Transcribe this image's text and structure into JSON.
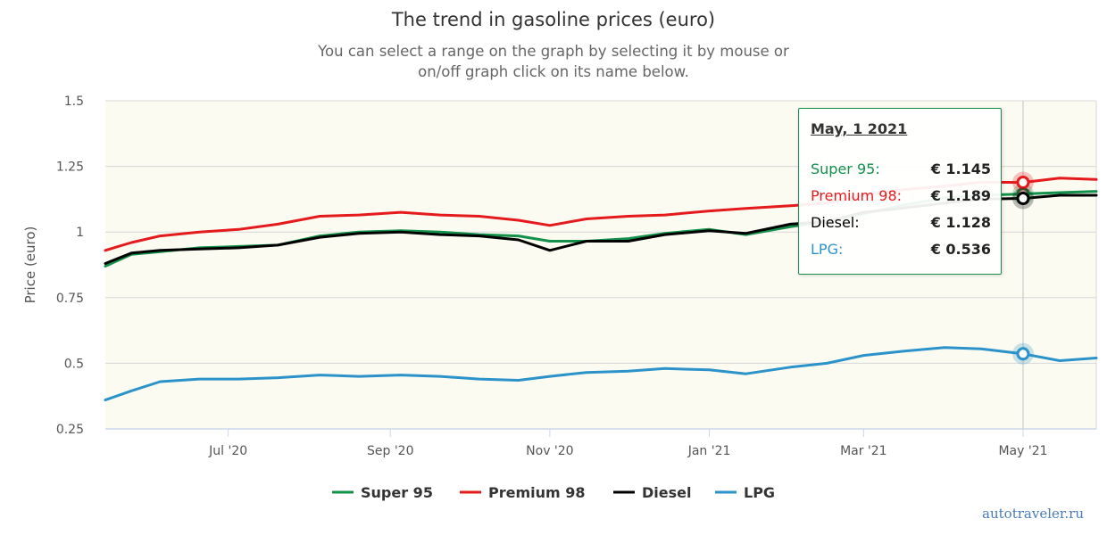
{
  "title": "The trend in gasoline prices (euro)",
  "subtitle": {
    "line1": "You can select a range on the graph by selecting it by mouse or",
    "line2": "on/off graph click on its name below."
  },
  "credit": "autotraveler.ru",
  "colors": {
    "super95": "#13904a",
    "premium98": "#e41a1c",
    "diesel": "#000000",
    "lpg": "#2b93c9",
    "plot_bg": "#fbfbf2",
    "grid": "#d8d8d8"
  },
  "tooltip": {
    "date": "May, 1 2021",
    "rows": [
      {
        "name": "Super 95:",
        "value": "€ 1.145",
        "color": "#13904a"
      },
      {
        "name": "Premium 98:",
        "value": "€ 1.189",
        "color": "#e41a1c"
      },
      {
        "name": "Diesel:",
        "value": "€ 1.128",
        "color": "#000000"
      },
      {
        "name": "LPG:",
        "value": "€ 0.536",
        "color": "#2b93c9"
      }
    ]
  },
  "chart_data": {
    "type": "line",
    "ylabel": "Price (euro)",
    "xlabel": "",
    "ylim": [
      0.25,
      1.5
    ],
    "yticks": [
      0.25,
      0.5,
      0.75,
      1,
      1.25,
      1.5
    ],
    "ytick_labels": [
      "0.25",
      "0.5",
      "0.75",
      "1",
      "1.25",
      "1.5"
    ],
    "xlim": [
      "2020-05-15",
      "2021-05-29"
    ],
    "xticks": [
      "2020-07-01",
      "2020-09-01",
      "2020-11-01",
      "2021-01-01",
      "2021-03-01",
      "2021-05-01"
    ],
    "xtick_labels": [
      "Jul '20",
      "Sep '20",
      "Nov '20",
      "Jan '21",
      "Mar '21",
      "May '21"
    ],
    "grid": true,
    "legend_position": "bottom-center",
    "crosshair_x": "2021-05-01",
    "series": [
      {
        "name": "Super 95",
        "color": "#13904a",
        "x": [
          "2020-05-15",
          "2020-05-25",
          "2020-06-05",
          "2020-06-20",
          "2020-07-05",
          "2020-07-20",
          "2020-08-05",
          "2020-08-20",
          "2020-09-05",
          "2020-09-20",
          "2020-10-05",
          "2020-10-20",
          "2020-11-01",
          "2020-11-15",
          "2020-12-01",
          "2020-12-15",
          "2021-01-01",
          "2021-01-15",
          "2021-02-01",
          "2021-02-15",
          "2021-03-01",
          "2021-03-15",
          "2021-04-01",
          "2021-04-15",
          "2021-05-01",
          "2021-05-15",
          "2021-05-29"
        ],
        "y": [
          0.87,
          0.915,
          0.925,
          0.94,
          0.945,
          0.95,
          0.985,
          1.0,
          1.005,
          1.0,
          0.99,
          0.985,
          0.965,
          0.965,
          0.975,
          0.995,
          1.01,
          0.99,
          1.02,
          1.04,
          1.07,
          1.1,
          1.13,
          1.14,
          1.145,
          1.15,
          1.155
        ]
      },
      {
        "name": "Premium 98",
        "color": "#e41a1c",
        "x": [
          "2020-05-15",
          "2020-05-25",
          "2020-06-05",
          "2020-06-20",
          "2020-07-05",
          "2020-07-20",
          "2020-08-05",
          "2020-08-20",
          "2020-09-05",
          "2020-09-20",
          "2020-10-05",
          "2020-10-20",
          "2020-11-01",
          "2020-11-15",
          "2020-12-01",
          "2020-12-15",
          "2021-01-01",
          "2021-01-15",
          "2021-02-01",
          "2021-02-15",
          "2021-03-01",
          "2021-03-15",
          "2021-04-01",
          "2021-04-15",
          "2021-05-01",
          "2021-05-15",
          "2021-05-29"
        ],
        "y": [
          0.93,
          0.96,
          0.985,
          1.0,
          1.01,
          1.03,
          1.06,
          1.065,
          1.075,
          1.065,
          1.06,
          1.045,
          1.025,
          1.05,
          1.06,
          1.065,
          1.08,
          1.09,
          1.1,
          1.11,
          1.14,
          1.16,
          1.175,
          1.19,
          1.189,
          1.205,
          1.2
        ]
      },
      {
        "name": "Diesel",
        "color": "#000000",
        "x": [
          "2020-05-15",
          "2020-05-25",
          "2020-06-05",
          "2020-06-20",
          "2020-07-05",
          "2020-07-20",
          "2020-08-05",
          "2020-08-20",
          "2020-09-05",
          "2020-09-20",
          "2020-10-05",
          "2020-10-20",
          "2020-11-01",
          "2020-11-15",
          "2020-12-01",
          "2020-12-15",
          "2021-01-01",
          "2021-01-15",
          "2021-02-01",
          "2021-02-15",
          "2021-03-01",
          "2021-03-15",
          "2021-04-01",
          "2021-04-15",
          "2021-05-01",
          "2021-05-15",
          "2021-05-29"
        ],
        "y": [
          0.88,
          0.92,
          0.93,
          0.935,
          0.94,
          0.95,
          0.98,
          0.995,
          1.0,
          0.99,
          0.985,
          0.97,
          0.93,
          0.965,
          0.965,
          0.99,
          1.005,
          0.995,
          1.03,
          1.04,
          1.075,
          1.09,
          1.11,
          1.125,
          1.128,
          1.14,
          1.14
        ]
      },
      {
        "name": "LPG",
        "color": "#2b93c9",
        "x": [
          "2020-05-15",
          "2020-05-25",
          "2020-06-05",
          "2020-06-20",
          "2020-07-05",
          "2020-07-20",
          "2020-08-05",
          "2020-08-20",
          "2020-09-05",
          "2020-09-20",
          "2020-10-05",
          "2020-10-20",
          "2020-11-01",
          "2020-11-15",
          "2020-12-01",
          "2020-12-15",
          "2021-01-01",
          "2021-01-15",
          "2021-02-01",
          "2021-02-15",
          "2021-03-01",
          "2021-03-15",
          "2021-04-01",
          "2021-04-15",
          "2021-05-01",
          "2021-05-15",
          "2021-05-29"
        ],
        "y": [
          0.36,
          0.395,
          0.43,
          0.44,
          0.44,
          0.445,
          0.455,
          0.45,
          0.455,
          0.45,
          0.44,
          0.435,
          0.45,
          0.465,
          0.47,
          0.48,
          0.475,
          0.46,
          0.485,
          0.5,
          0.53,
          0.545,
          0.56,
          0.555,
          0.536,
          0.51,
          0.52
        ]
      }
    ]
  }
}
